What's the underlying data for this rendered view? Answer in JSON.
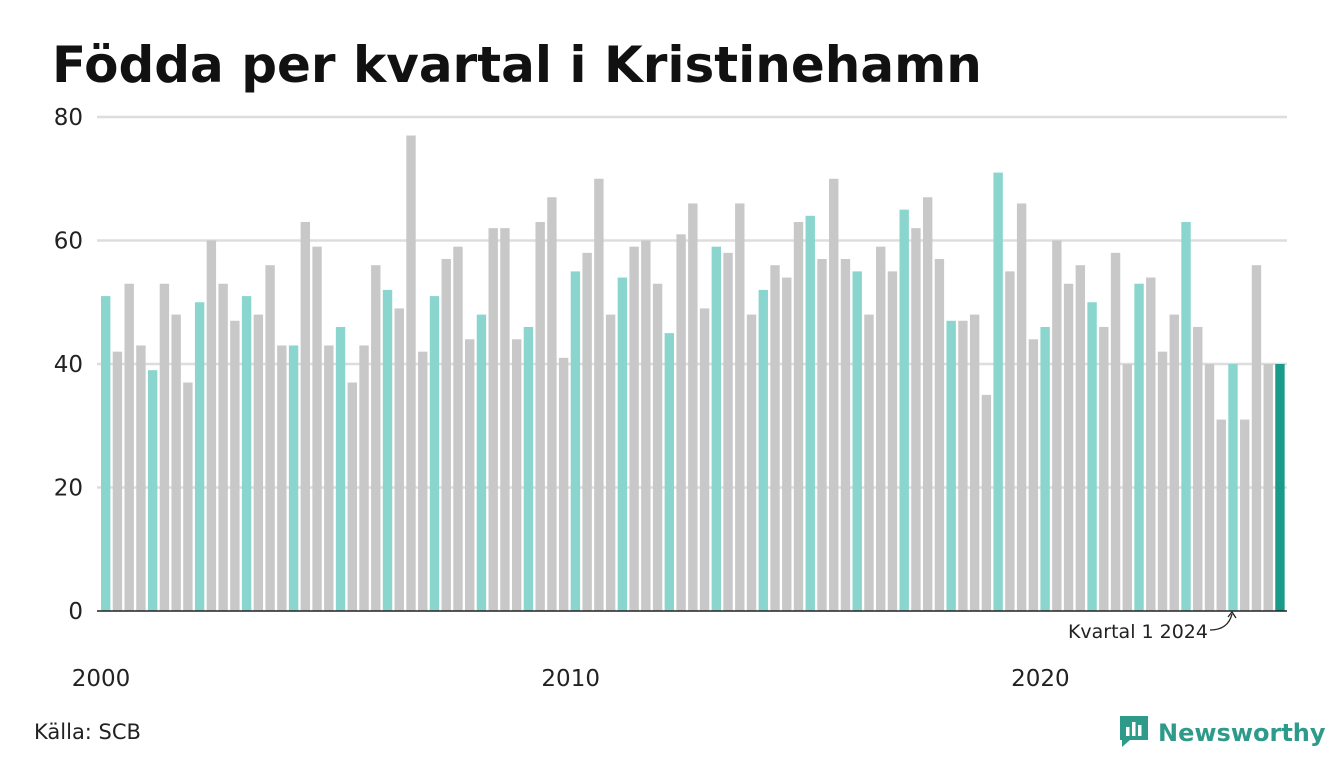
{
  "title": "Födda per kvartal i Kristinehamn",
  "source": "Källa: SCB",
  "brand": {
    "name": "Newsworthy",
    "icon": "newsworthy-logo-icon"
  },
  "colors": {
    "q1": "#8ad6ce",
    "other": "#c8c8c8",
    "latest": "#1a9a88",
    "grid": "#dddddd",
    "axis": "#222222",
    "brand": "#2e9a8a"
  },
  "chart_data": {
    "type": "bar",
    "title": "Födda per kvartal i Kristinehamn",
    "xlabel": "",
    "ylabel": "",
    "ylim": [
      0,
      80
    ],
    "yticks": [
      0,
      20,
      40,
      60,
      80
    ],
    "xticks": [
      "2000",
      "2010",
      "2020"
    ],
    "grid": true,
    "start_year": 2000,
    "values": [
      51,
      42,
      53,
      43,
      39,
      53,
      48,
      37,
      50,
      60,
      53,
      47,
      51,
      48,
      56,
      43,
      43,
      63,
      59,
      43,
      46,
      37,
      43,
      56,
      52,
      49,
      77,
      42,
      51,
      57,
      59,
      44,
      48,
      62,
      62,
      44,
      46,
      63,
      67,
      41,
      55,
      58,
      70,
      48,
      54,
      59,
      60,
      53,
      45,
      61,
      66,
      49,
      59,
      58,
      66,
      48,
      52,
      56,
      54,
      63,
      64,
      57,
      70,
      57,
      55,
      48,
      59,
      55,
      65,
      62,
      67,
      57,
      47,
      47,
      48,
      35,
      71,
      55,
      66,
      44,
      46,
      60,
      53,
      56,
      50,
      46,
      58,
      40,
      53,
      54,
      42,
      48,
      63,
      46,
      40,
      31,
      40,
      31,
      56,
      40,
      40
    ],
    "annotation": {
      "text": "Kvartal 1 2024",
      "target": "2024 Q1"
    }
  }
}
